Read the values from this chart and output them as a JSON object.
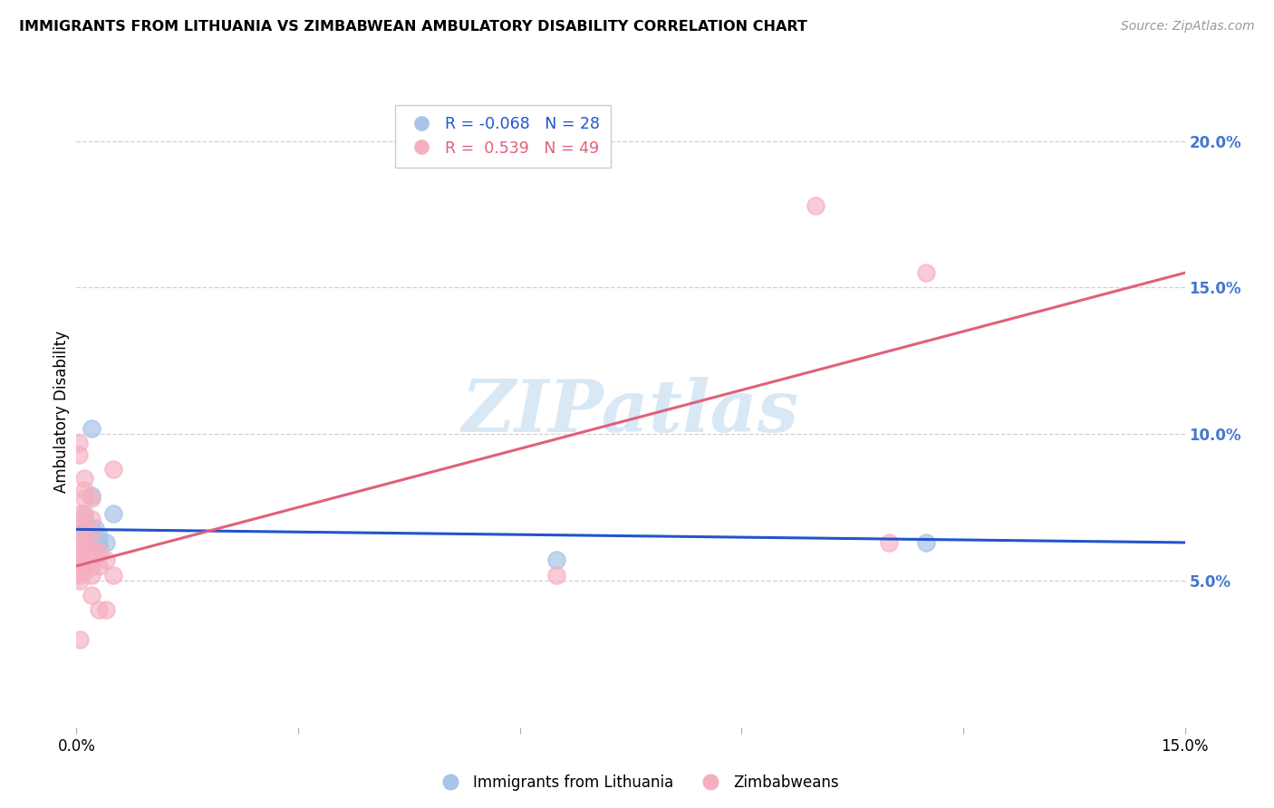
{
  "title": "IMMIGRANTS FROM LITHUANIA VS ZIMBABWEAN AMBULATORY DISABILITY CORRELATION CHART",
  "source": "Source: ZipAtlas.com",
  "ylabel": "Ambulatory Disability",
  "legend_labels": [
    "Immigrants from Lithuania",
    "Zimbabweans"
  ],
  "blue_R": -0.068,
  "blue_N": 28,
  "pink_R": 0.539,
  "pink_N": 49,
  "blue_color": "#a8c4e8",
  "pink_color": "#f5afc0",
  "blue_line_color": "#2255cc",
  "pink_line_color": "#e0607a",
  "blue_line": [
    [
      0.0,
      0.0675
    ],
    [
      0.15,
      0.063
    ]
  ],
  "pink_line": [
    [
      0.0,
      0.055
    ],
    [
      0.15,
      0.155
    ]
  ],
  "blue_points": [
    [
      0.0005,
      0.069
    ],
    [
      0.0005,
      0.066
    ],
    [
      0.0005,
      0.063
    ],
    [
      0.0005,
      0.062
    ],
    [
      0.0005,
      0.06
    ],
    [
      0.0005,
      0.058
    ],
    [
      0.001,
      0.065
    ],
    [
      0.001,
      0.072
    ],
    [
      0.0015,
      0.063
    ],
    [
      0.0015,
      0.061
    ],
    [
      0.0015,
      0.062
    ],
    [
      0.0015,
      0.064
    ],
    [
      0.002,
      0.058
    ],
    [
      0.002,
      0.079
    ],
    [
      0.002,
      0.102
    ],
    [
      0.002,
      0.068
    ],
    [
      0.0025,
      0.068
    ],
    [
      0.0025,
      0.063
    ],
    [
      0.0025,
      0.059
    ],
    [
      0.0025,
      0.062
    ],
    [
      0.003,
      0.065
    ],
    [
      0.003,
      0.062
    ],
    [
      0.003,
      0.063
    ],
    [
      0.003,
      0.061
    ],
    [
      0.004,
      0.063
    ],
    [
      0.005,
      0.073
    ],
    [
      0.065,
      0.057
    ],
    [
      0.115,
      0.063
    ]
  ],
  "pink_points": [
    [
      0.0003,
      0.097
    ],
    [
      0.0003,
      0.093
    ],
    [
      0.0005,
      0.073
    ],
    [
      0.0005,
      0.068
    ],
    [
      0.0005,
      0.065
    ],
    [
      0.0005,
      0.063
    ],
    [
      0.0005,
      0.062
    ],
    [
      0.0005,
      0.061
    ],
    [
      0.0005,
      0.06
    ],
    [
      0.0005,
      0.058
    ],
    [
      0.0005,
      0.057
    ],
    [
      0.0005,
      0.056
    ],
    [
      0.0005,
      0.055
    ],
    [
      0.0005,
      0.054
    ],
    [
      0.0005,
      0.053
    ],
    [
      0.0005,
      0.052
    ],
    [
      0.0005,
      0.05
    ],
    [
      0.0005,
      0.03
    ],
    [
      0.001,
      0.085
    ],
    [
      0.001,
      0.081
    ],
    [
      0.001,
      0.078
    ],
    [
      0.001,
      0.073
    ],
    [
      0.001,
      0.068
    ],
    [
      0.001,
      0.064
    ],
    [
      0.001,
      0.06
    ],
    [
      0.001,
      0.059
    ],
    [
      0.001,
      0.057
    ],
    [
      0.001,
      0.055
    ],
    [
      0.001,
      0.053
    ],
    [
      0.002,
      0.078
    ],
    [
      0.002,
      0.071
    ],
    [
      0.002,
      0.066
    ],
    [
      0.002,
      0.06
    ],
    [
      0.002,
      0.057
    ],
    [
      0.002,
      0.055
    ],
    [
      0.002,
      0.052
    ],
    [
      0.002,
      0.045
    ],
    [
      0.003,
      0.06
    ],
    [
      0.003,
      0.059
    ],
    [
      0.003,
      0.055
    ],
    [
      0.003,
      0.04
    ],
    [
      0.004,
      0.057
    ],
    [
      0.004,
      0.04
    ],
    [
      0.005,
      0.088
    ],
    [
      0.005,
      0.052
    ],
    [
      0.065,
      0.052
    ],
    [
      0.1,
      0.178
    ],
    [
      0.11,
      0.063
    ],
    [
      0.115,
      0.155
    ]
  ],
  "xlim": [
    0.0,
    0.15
  ],
  "ylim": [
    0.0,
    0.215
  ],
  "right_yticks": [
    0.05,
    0.1,
    0.15,
    0.2
  ],
  "right_ytick_labels": [
    "5.0%",
    "10.0%",
    "15.0%",
    "20.0%"
  ],
  "xtick_positions": [
    0.0,
    0.03,
    0.06,
    0.09,
    0.12,
    0.15
  ],
  "xtick_labels": [
    "0.0%",
    "",
    "",
    "",
    "",
    "15.0%"
  ],
  "watermark": "ZIPatlas",
  "watermark_color": "#d8e8f5",
  "background_color": "#ffffff",
  "grid_color": "#d0d0d0"
}
